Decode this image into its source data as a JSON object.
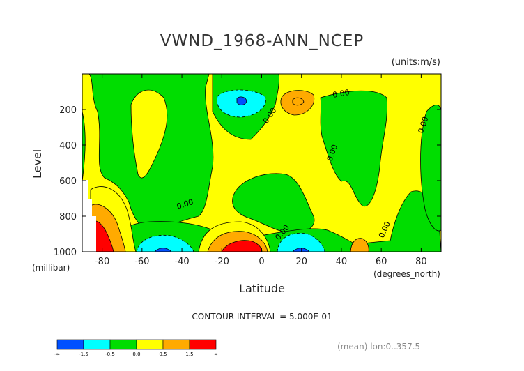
{
  "chart_data": {
    "type": "heatmap",
    "title": "VWND_1968-ANN_NCEP",
    "units": "(units:m/s)",
    "ylabel": "Level",
    "yunits": "(millibar)",
    "xlabel": "Latitude",
    "xunits": "(degrees_north)",
    "xlim": [
      -90,
      90
    ],
    "ylim": [
      1000,
      0
    ],
    "xticks": [
      "-80",
      "-60",
      "-40",
      "-20",
      "0",
      "20",
      "40",
      "60",
      "80"
    ],
    "yticks": [
      "200",
      "400",
      "600",
      "800",
      "1000"
    ],
    "contour_interval": "CONTOUR INTERVAL = 5.000E-01",
    "contour_labels": [
      "0.00",
      "0.00",
      "0.00",
      "0.00",
      "0.00",
      "0.00",
      "0.00"
    ],
    "colorbar": {
      "labels": [
        "-∞",
        "-1.5",
        "-0.5",
        "0.0",
        "0.5",
        "1.5",
        "∞"
      ],
      "colors": [
        "#0050ff",
        "#00ffff",
        "#00dd00",
        "#ffff00",
        "#ffaa00",
        "#ff0000"
      ]
    },
    "subset_note": "(mean) lon:0..357.5"
  }
}
